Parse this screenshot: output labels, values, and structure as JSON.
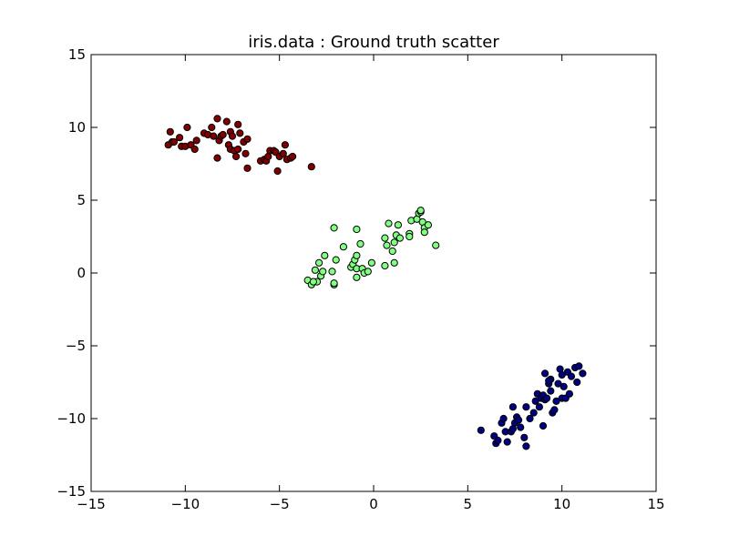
{
  "chart_data": {
    "type": "scatter",
    "title": "iris.data : Ground truth scatter",
    "xlabel": "",
    "ylabel": "",
    "xlim": [
      -15,
      15
    ],
    "ylim": [
      -15,
      15
    ],
    "xticks": [
      -15,
      -10,
      -5,
      0,
      5,
      10,
      15
    ],
    "yticks": [
      -15,
      -10,
      -5,
      0,
      5,
      10,
      15
    ],
    "xtick_labels": [
      "−15",
      "−10",
      "−5",
      "0",
      "5",
      "10",
      "15"
    ],
    "ytick_labels": [
      "−15",
      "−10",
      "−5",
      "0",
      "5",
      "10",
      "15"
    ],
    "grid": false,
    "legend": "none",
    "series": [
      {
        "color": "#800000",
        "points": [
          [
            -10.9,
            8.8
          ],
          [
            -10.7,
            9.0
          ],
          [
            -10.8,
            9.7
          ],
          [
            -10.6,
            9.0
          ],
          [
            -10.3,
            9.3
          ],
          [
            -10.2,
            8.7
          ],
          [
            -10.0,
            8.7
          ],
          [
            -9.9,
            10.0
          ],
          [
            -9.7,
            8.8
          ],
          [
            -9.5,
            8.5
          ],
          [
            -9.4,
            9.1
          ],
          [
            -9.0,
            9.6
          ],
          [
            -8.8,
            9.5
          ],
          [
            -8.6,
            10.0
          ],
          [
            -8.5,
            9.4
          ],
          [
            -8.3,
            10.6
          ],
          [
            -8.2,
            9.1
          ],
          [
            -8.1,
            9.4
          ],
          [
            -8.3,
            7.9
          ],
          [
            -8.0,
            9.5
          ],
          [
            -7.8,
            10.4
          ],
          [
            -7.6,
            9.7
          ],
          [
            -7.7,
            8.8
          ],
          [
            -7.5,
            9.4
          ],
          [
            -7.6,
            8.5
          ],
          [
            -7.4,
            8.4
          ],
          [
            -7.3,
            8.0
          ],
          [
            -7.2,
            8.5
          ],
          [
            -7.2,
            10.2
          ],
          [
            -7.1,
            9.6
          ],
          [
            -6.9,
            9.0
          ],
          [
            -6.7,
            9.2
          ],
          [
            -6.8,
            8.2
          ],
          [
            -6.7,
            7.2
          ],
          [
            -6.0,
            7.7
          ],
          [
            -5.8,
            7.8
          ],
          [
            -5.7,
            7.7
          ],
          [
            -5.6,
            8.0
          ],
          [
            -5.5,
            8.4
          ],
          [
            -5.3,
            8.4
          ],
          [
            -5.2,
            8.3
          ],
          [
            -5.1,
            7.0
          ],
          [
            -5.0,
            8.0
          ],
          [
            -4.8,
            8.2
          ],
          [
            -4.7,
            8.8
          ],
          [
            -4.6,
            7.8
          ],
          [
            -4.4,
            7.9
          ],
          [
            -4.3,
            8.0
          ],
          [
            -3.3,
            7.3
          ]
        ]
      },
      {
        "color": "#80ff80",
        "points": [
          [
            -3.5,
            -0.5
          ],
          [
            -3.3,
            -0.8
          ],
          [
            -3.1,
            0.2
          ],
          [
            -3.0,
            -0.6
          ],
          [
            -2.9,
            0.7
          ],
          [
            -2.8,
            -0.2
          ],
          [
            -2.7,
            0.1
          ],
          [
            -2.6,
            1.2
          ],
          [
            -2.2,
            0.1
          ],
          [
            -2.1,
            3.1
          ],
          [
            -2.1,
            -0.8
          ],
          [
            -2.0,
            0.9
          ],
          [
            -1.6,
            1.8
          ],
          [
            -1.2,
            0.4
          ],
          [
            -1.1,
            0.6
          ],
          [
            -1.0,
            0.9
          ],
          [
            -0.9,
            3.0
          ],
          [
            -0.9,
            1.2
          ],
          [
            -0.9,
            0.3
          ],
          [
            -0.9,
            -0.3
          ],
          [
            -0.7,
            2.0
          ],
          [
            -0.6,
            0.3
          ],
          [
            -0.5,
            0.0
          ],
          [
            -0.3,
            0.1
          ],
          [
            -0.1,
            0.7
          ],
          [
            0.6,
            0.5
          ],
          [
            0.6,
            2.4
          ],
          [
            0.7,
            1.9
          ],
          [
            0.8,
            3.4
          ],
          [
            1.0,
            1.5
          ],
          [
            1.1,
            0.7
          ],
          [
            1.1,
            2.1
          ],
          [
            1.3,
            3.3
          ],
          [
            1.2,
            2.6
          ],
          [
            1.4,
            2.4
          ],
          [
            1.9,
            2.7
          ],
          [
            1.9,
            2.5
          ],
          [
            2.0,
            3.6
          ],
          [
            2.3,
            3.7
          ],
          [
            2.4,
            4.1
          ],
          [
            2.5,
            4.2
          ],
          [
            2.5,
            4.3
          ],
          [
            2.6,
            3.5
          ],
          [
            2.7,
            3.1
          ],
          [
            2.7,
            2.8
          ],
          [
            2.9,
            3.3
          ],
          [
            3.3,
            1.9
          ],
          [
            -2.1,
            -0.7
          ],
          [
            -3.2,
            -0.6
          ]
        ]
      },
      {
        "color": "#000080",
        "points": [
          [
            5.7,
            -10.8
          ],
          [
            6.4,
            -11.2
          ],
          [
            6.5,
            -11.7
          ],
          [
            6.6,
            -11.5
          ],
          [
            6.8,
            -10.3
          ],
          [
            6.9,
            -10.0
          ],
          [
            7.0,
            -10.9
          ],
          [
            7.1,
            -11.6
          ],
          [
            7.3,
            -10.9
          ],
          [
            7.4,
            -10.7
          ],
          [
            7.4,
            -9.2
          ],
          [
            7.5,
            -10.3
          ],
          [
            7.6,
            -9.9
          ],
          [
            7.7,
            -10.1
          ],
          [
            7.8,
            -10.6
          ],
          [
            8.0,
            -11.3
          ],
          [
            8.1,
            -11.9
          ],
          [
            8.1,
            -9.2
          ],
          [
            8.3,
            -10.0
          ],
          [
            8.5,
            -9.6
          ],
          [
            8.6,
            -8.8
          ],
          [
            8.7,
            -8.3
          ],
          [
            8.8,
            -9.2
          ],
          [
            8.9,
            -8.6
          ],
          [
            9.0,
            -10.5
          ],
          [
            9.0,
            -8.4
          ],
          [
            9.1,
            -8.7
          ],
          [
            9.1,
            -6.9
          ],
          [
            9.2,
            -8.6
          ],
          [
            9.3,
            -7.6
          ],
          [
            9.4,
            -8.1
          ],
          [
            9.4,
            -7.3
          ],
          [
            9.5,
            -9.6
          ],
          [
            9.6,
            -9.4
          ],
          [
            9.7,
            -8.8
          ],
          [
            9.8,
            -7.6
          ],
          [
            9.9,
            -6.6
          ],
          [
            10.0,
            -8.6
          ],
          [
            10.0,
            -7.0
          ],
          [
            10.1,
            -7.8
          ],
          [
            10.2,
            -8.6
          ],
          [
            10.3,
            -6.8
          ],
          [
            10.4,
            -8.3
          ],
          [
            10.5,
            -7.1
          ],
          [
            10.7,
            -6.5
          ],
          [
            10.8,
            -7.5
          ],
          [
            10.9,
            -6.4
          ],
          [
            11.1,
            -6.9
          ],
          [
            9.3,
            -7.4
          ]
        ]
      }
    ]
  }
}
